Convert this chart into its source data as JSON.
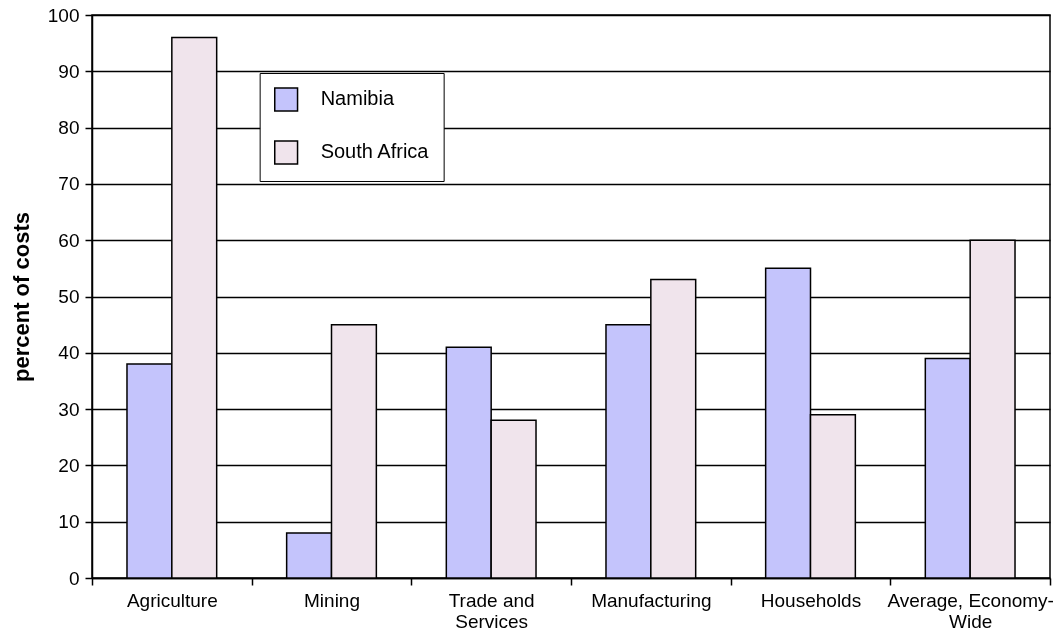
{
  "chart_data": {
    "type": "bar",
    "ylabel": "percent of costs",
    "categories": [
      "Agriculture",
      "Mining",
      "Trade and Services",
      "Manufacturing",
      "Households",
      "Average, Economy-Wide"
    ],
    "series": [
      {
        "name": "Namibia",
        "color": "#c4c4fc",
        "values": [
          38,
          8,
          41,
          45,
          55,
          39
        ]
      },
      {
        "name": "South Africa",
        "color": "#f0e4ec",
        "values": [
          96,
          45,
          28,
          53,
          29,
          60
        ]
      }
    ],
    "ylim": [
      0,
      100
    ],
    "yticks": [
      0,
      10,
      20,
      30,
      40,
      50,
      60,
      70,
      80,
      90,
      100
    ],
    "grid": "y",
    "legend": "top left"
  }
}
